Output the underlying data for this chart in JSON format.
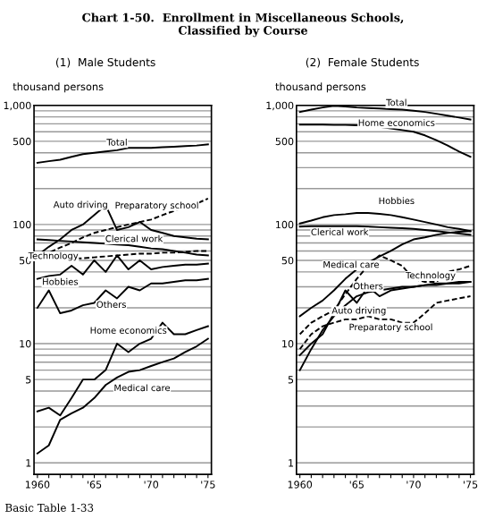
{
  "chart_data": [
    {
      "type": "line",
      "title": "(1)  Male Students",
      "ylabel": "thousand persons",
      "log": "y",
      "grid": "y",
      "legend": false,
      "marker": "none",
      "annotations": [
        "Chart 1-50.  Enrollment in Miscellaneous Schools,\nClassified by Course",
        "Basic Table 1-33"
      ],
      "x": [
        1960,
        1961,
        1962,
        1963,
        1964,
        1965,
        1966,
        1967,
        1968,
        1969,
        1970,
        1971,
        1972,
        1973,
        1974,
        1975
      ],
      "xlim": [
        1959.7,
        1975.3
      ],
      "ylim": [
        0.8,
        1000
      ],
      "xticks": [
        {
          "value": 1960,
          "label": "1960"
        },
        {
          "value": 1961,
          "label": null
        },
        {
          "value": 1962,
          "label": null
        },
        {
          "value": 1963,
          "label": null
        },
        {
          "value": 1964,
          "label": null
        },
        {
          "value": 1965,
          "label": "'65"
        },
        {
          "value": 1966,
          "label": null
        },
        {
          "value": 1967,
          "label": null
        },
        {
          "value": 1968,
          "label": null
        },
        {
          "value": 1969,
          "label": null
        },
        {
          "value": 1970,
          "label": "'70"
        },
        {
          "value": 1971,
          "label": null
        },
        {
          "value": 1972,
          "label": null
        },
        {
          "value": 1973,
          "label": null
        },
        {
          "value": 1974,
          "label": null
        },
        {
          "value": 1975,
          "label": "'75"
        }
      ],
      "yticks": [
        {
          "value": 1,
          "label": "1"
        },
        {
          "value": 2,
          "label": null
        },
        {
          "value": 3,
          "label": null
        },
        {
          "value": 4,
          "label": null
        },
        {
          "value": 5,
          "label": "5"
        },
        {
          "value": 6,
          "label": null
        },
        {
          "value": 7,
          "label": null
        },
        {
          "value": 8,
          "label": null
        },
        {
          "value": 9,
          "label": null
        },
        {
          "value": 10,
          "label": "10"
        },
        {
          "value": 20,
          "label": null
        },
        {
          "value": 30,
          "label": null
        },
        {
          "value": 40,
          "label": null
        },
        {
          "value": 50,
          "label": "50"
        },
        {
          "value": 60,
          "label": null
        },
        {
          "value": 70,
          "label": null
        },
        {
          "value": 80,
          "label": null
        },
        {
          "value": 90,
          "label": null
        },
        {
          "value": 100,
          "label": "100"
        },
        {
          "value": 200,
          "label": null
        },
        {
          "value": 300,
          "label": null
        },
        {
          "value": 400,
          "label": null
        },
        {
          "value": 500,
          "label": "500"
        },
        {
          "value": 600,
          "label": null
        },
        {
          "value": 700,
          "label": null
        },
        {
          "value": 800,
          "label": null
        },
        {
          "value": 900,
          "label": null
        },
        {
          "value": 1000,
          "label": "1,000"
        }
      ],
      "series": [
        {
          "name": "Total",
          "color": "#000000",
          "line_style": "solid",
          "values": [
            330,
            340,
            350,
            370,
            390,
            400,
            410,
            420,
            440,
            440,
            440,
            445,
            450,
            455,
            460,
            470
          ]
        },
        {
          "name": "Auto driving",
          "color": "#000000",
          "line_style": "solid",
          "values": [
            55,
            65,
            75,
            90,
            100,
            120,
            145,
            90,
            95,
            105,
            90,
            85,
            80,
            78,
            76,
            75
          ]
        },
        {
          "name": "Preparatory school",
          "color": "#000000",
          "line_style": "dashed",
          "values": [
            50,
            58,
            64,
            70,
            78,
            85,
            90,
            95,
            100,
            105,
            110,
            120,
            130,
            140,
            150,
            165
          ]
        },
        {
          "name": "Clerical work",
          "color": "#000000",
          "line_style": "solid",
          "values": [
            75,
            74,
            73,
            72,
            71,
            70,
            69,
            68,
            67,
            65,
            63,
            62,
            60,
            58,
            56,
            55
          ]
        },
        {
          "name": "Technology",
          "color": "#000000",
          "line_style": "dashed",
          "values": [
            55,
            54,
            53,
            52,
            52,
            53,
            54,
            55,
            56,
            57,
            57,
            58,
            58,
            59,
            60,
            60
          ]
        },
        {
          "name": "Hobbies",
          "color": "#000000",
          "line_style": "solid",
          "values": [
            35,
            37,
            38,
            45,
            38,
            50,
            40,
            55,
            42,
            50,
            42,
            44,
            45,
            46,
            46,
            47
          ]
        },
        {
          "name": "Others",
          "color": "#000000",
          "line_style": "solid",
          "values": [
            20,
            28,
            18,
            19,
            21,
            22,
            28,
            24,
            30,
            28,
            32,
            32,
            33,
            34,
            34,
            35
          ]
        },
        {
          "name": "Home economics",
          "color": "#000000",
          "line_style": "solid",
          "values": [
            2.7,
            2.9,
            2.5,
            3.5,
            5,
            5,
            6,
            10,
            8.5,
            10,
            11,
            15,
            12,
            12,
            13,
            14
          ]
        },
        {
          "name": "Medical care",
          "color": "#000000",
          "line_style": "solid",
          "values": [
            1.2,
            1.4,
            2.3,
            2.6,
            2.9,
            3.5,
            4.5,
            5.2,
            5.8,
            6,
            6.5,
            7,
            7.5,
            8.5,
            9.5,
            11
          ]
        }
      ]
    },
    {
      "type": "line",
      "title": "(2)  Female Students",
      "ylabel": "thousand persons",
      "log": "y",
      "grid": "y",
      "legend": false,
      "marker": "none",
      "x": [
        1960,
        1961,
        1962,
        1963,
        1964,
        1965,
        1966,
        1967,
        1968,
        1969,
        1970,
        1971,
        1972,
        1973,
        1974,
        1975
      ],
      "xlim": [
        1959.7,
        1975.3
      ],
      "ylim": [
        0.8,
        1000
      ],
      "xticks": [
        {
          "value": 1960,
          "label": "1960"
        },
        {
          "value": 1961,
          "label": null
        },
        {
          "value": 1962,
          "label": null
        },
        {
          "value": 1963,
          "label": null
        },
        {
          "value": 1964,
          "label": null
        },
        {
          "value": 1965,
          "label": "'65"
        },
        {
          "value": 1966,
          "label": null
        },
        {
          "value": 1967,
          "label": null
        },
        {
          "value": 1968,
          "label": null
        },
        {
          "value": 1969,
          "label": null
        },
        {
          "value": 1970,
          "label": "'70"
        },
        {
          "value": 1971,
          "label": null
        },
        {
          "value": 1972,
          "label": null
        },
        {
          "value": 1973,
          "label": null
        },
        {
          "value": 1974,
          "label": null
        },
        {
          "value": 1975,
          "label": "'75"
        }
      ],
      "yticks": [
        {
          "value": 1,
          "label": "1"
        },
        {
          "value": 2,
          "label": null
        },
        {
          "value": 3,
          "label": null
        },
        {
          "value": 4,
          "label": null
        },
        {
          "value": 5,
          "label": "5"
        },
        {
          "value": 6,
          "label": null
        },
        {
          "value": 7,
          "label": null
        },
        {
          "value": 8,
          "label": null
        },
        {
          "value": 9,
          "label": null
        },
        {
          "value": 10,
          "label": "10"
        },
        {
          "value": 20,
          "label": null
        },
        {
          "value": 30,
          "label": null
        },
        {
          "value": 40,
          "label": null
        },
        {
          "value": 50,
          "label": "50"
        },
        {
          "value": 60,
          "label": null
        },
        {
          "value": 70,
          "label": null
        },
        {
          "value": 80,
          "label": null
        },
        {
          "value": 90,
          "label": null
        },
        {
          "value": 100,
          "label": "100"
        },
        {
          "value": 200,
          "label": null
        },
        {
          "value": 300,
          "label": null
        },
        {
          "value": 400,
          "label": null
        },
        {
          "value": 500,
          "label": "500"
        },
        {
          "value": 600,
          "label": null
        },
        {
          "value": 700,
          "label": null
        },
        {
          "value": 800,
          "label": null
        },
        {
          "value": 900,
          "label": null
        },
        {
          "value": 1000,
          "label": "1,000"
        }
      ],
      "series": [
        {
          "name": "Total",
          "color": "#000000",
          "line_style": "solid",
          "values": [
            880,
            920,
            960,
            990,
            980,
            960,
            950,
            940,
            930,
            920,
            900,
            880,
            850,
            820,
            790,
            760
          ]
        },
        {
          "name": "Home economics",
          "color": "#000000",
          "line_style": "solid",
          "values": [
            690,
            690,
            690,
            685,
            685,
            680,
            670,
            660,
            640,
            620,
            600,
            560,
            510,
            460,
            410,
            370
          ]
        },
        {
          "name": "Hobbies",
          "color": "#000000",
          "line_style": "solid",
          "values": [
            102,
            108,
            115,
            120,
            122,
            125,
            125,
            123,
            120,
            115,
            110,
            105,
            100,
            95,
            92,
            88
          ]
        },
        {
          "name": "Clerical work",
          "color": "#000000",
          "line_style": "solid",
          "values": [
            96,
            97,
            97,
            97,
            97,
            97,
            96,
            95,
            94,
            93,
            92,
            90,
            88,
            86,
            84,
            82
          ]
        },
        {
          "name": "Medical care",
          "color": "#000000",
          "line_style": "solid",
          "values": [
            17,
            20,
            23,
            28,
            35,
            42,
            48,
            54,
            60,
            68,
            75,
            78,
            82,
            85,
            87,
            88
          ]
        },
        {
          "name": "Technology",
          "color": "#000000",
          "line_style": "dashed",
          "values": [
            12,
            15,
            17,
            19,
            26,
            35,
            45,
            55,
            50,
            45,
            35,
            33,
            33,
            40,
            42,
            45
          ]
        },
        {
          "name": "Others",
          "color": "#000000",
          "line_style": "solid",
          "values": [
            8,
            10,
            12,
            18,
            28,
            22,
            30,
            25,
            28,
            29,
            30,
            31,
            32,
            32,
            33,
            33
          ]
        },
        {
          "name": "Preparatory school",
          "color": "#000000",
          "line_style": "dashed",
          "values": [
            9,
            12,
            14,
            15,
            16,
            16,
            17,
            16,
            16,
            15,
            15,
            18,
            22,
            23,
            24,
            25
          ]
        },
        {
          "name": "Auto driving",
          "color": "#000000",
          "line_style": "solid",
          "values": [
            6,
            9,
            13,
            17,
            21,
            25,
            27,
            28,
            29,
            30,
            30,
            31,
            31,
            32,
            32,
            33
          ]
        }
      ]
    }
  ]
}
